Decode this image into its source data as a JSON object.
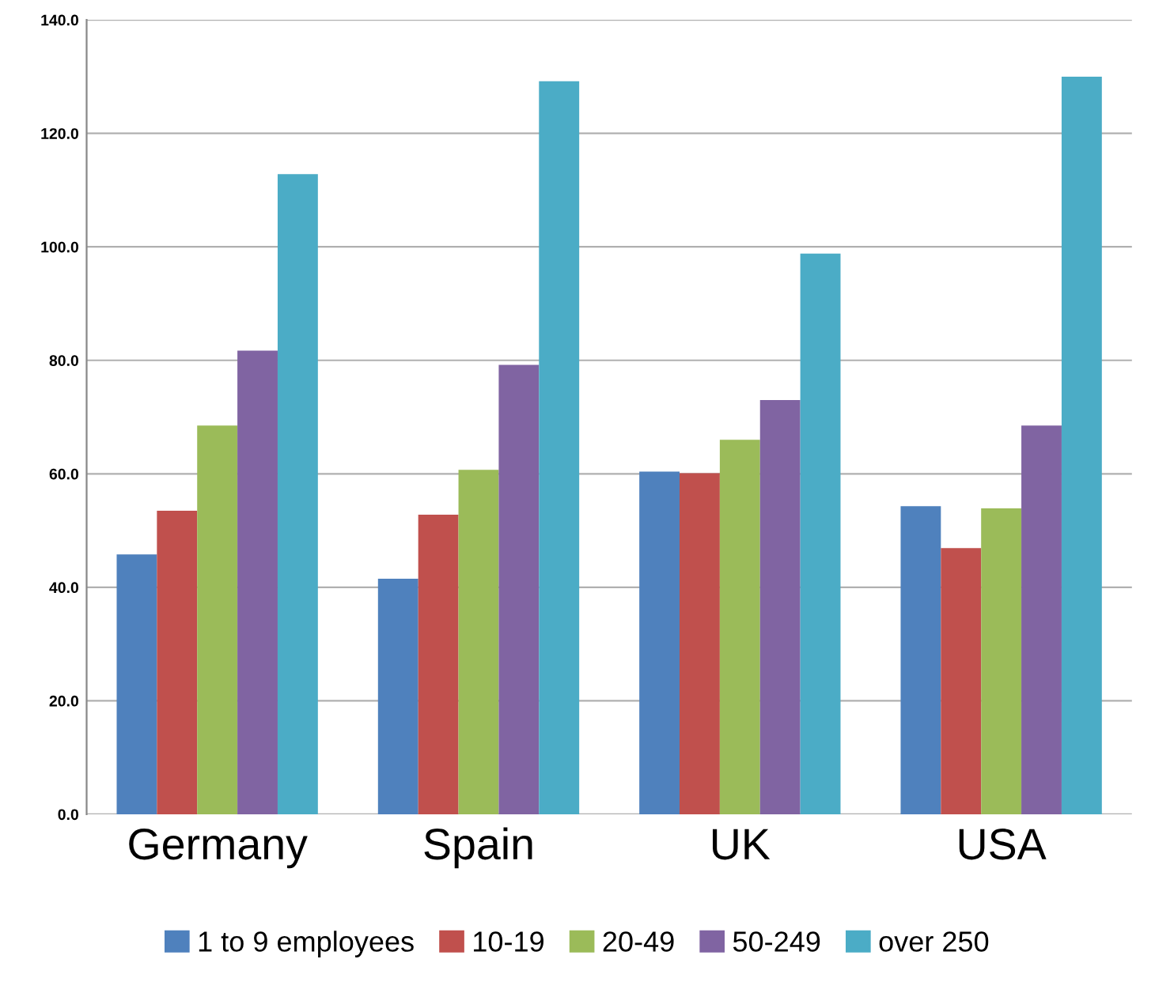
{
  "chart_data": {
    "type": "bar",
    "categories": [
      "Germany",
      "Spain",
      "UK",
      "USA"
    ],
    "series": [
      {
        "name": "1 to 9 employees",
        "color": "#4f81bd",
        "values": [
          45.8,
          41.5,
          60.4,
          54.3
        ]
      },
      {
        "name": "10-19",
        "color": "#c0504d",
        "values": [
          53.5,
          52.8,
          60.1,
          46.9
        ]
      },
      {
        "name": "20-49",
        "color": "#9bbb59",
        "values": [
          68.5,
          60.7,
          66.0,
          53.9
        ]
      },
      {
        "name": "50-249",
        "color": "#8064a2",
        "values": [
          81.7,
          79.2,
          73.0,
          68.5
        ]
      },
      {
        "name": "over 250",
        "color": "#4bacc6",
        "values": [
          112.8,
          129.2,
          98.8,
          130.0
        ]
      }
    ],
    "ylim": [
      0,
      140
    ],
    "yticks": [
      {
        "value": 0,
        "label": "0.0"
      },
      {
        "value": 20,
        "label": "20.0"
      },
      {
        "value": 40,
        "label": "40.0"
      },
      {
        "value": 60,
        "label": "60.0"
      },
      {
        "value": 80,
        "label": "80.0"
      },
      {
        "value": 100,
        "label": "100.0"
      },
      {
        "value": 120,
        "label": "120.0"
      },
      {
        "value": 140,
        "label": "140.0"
      }
    ],
    "grid": "y",
    "legend": "bottom"
  }
}
